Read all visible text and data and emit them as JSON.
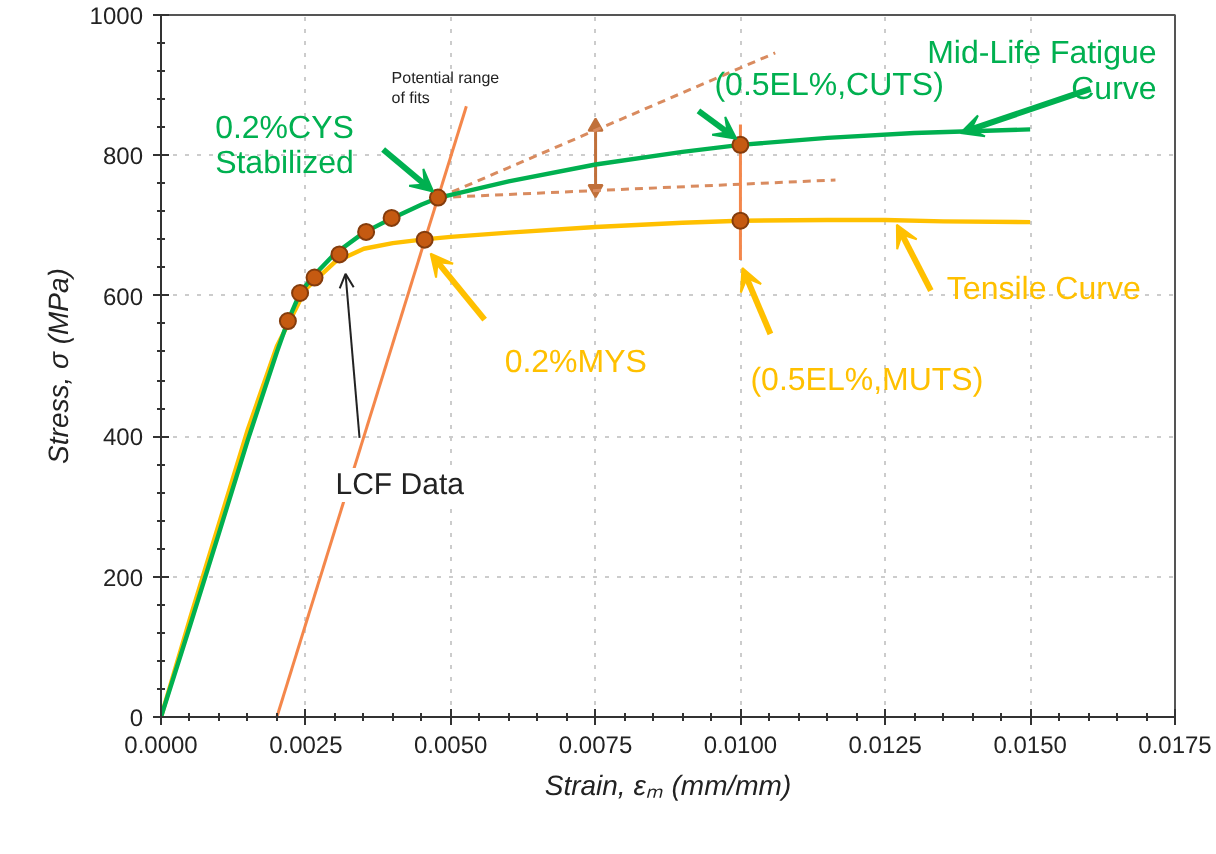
{
  "chart_data": {
    "type": "line",
    "xlabel": "Strain, εₘ (mm/mm)",
    "ylabel": "Stress, σ (MPa)",
    "xlim": [
      0,
      0.0175
    ],
    "ylim": [
      0,
      1000
    ],
    "xticks": [
      {
        "value": 0,
        "label": "0.0000"
      },
      {
        "value": 0.0025,
        "label": "0.0025"
      },
      {
        "value": 0.005,
        "label": "0.0050"
      },
      {
        "value": 0.0075,
        "label": "0.0075"
      },
      {
        "value": 0.01,
        "label": "0.0100"
      },
      {
        "value": 0.0125,
        "label": "0.0125"
      },
      {
        "value": 0.015,
        "label": "0.0150"
      },
      {
        "value": 0.0175,
        "label": "0.0175"
      }
    ],
    "yticks": [
      0,
      200,
      400,
      600,
      800,
      1000
    ],
    "grid": true,
    "series": [
      {
        "color": "#f4874b",
        "x": [
          0.002,
          0.00527
        ],
        "values": [
          0,
          870
        ]
      },
      {
        "color": "#c0703a",
        "marker": "triangle",
        "x": [
          0.0075,
          0.0075
        ],
        "values": [
          752,
          841
        ]
      },
      {
        "color": "#d98b5f",
        "line_style": "dashed",
        "x": [
          0.0048,
          0.0106
        ],
        "values": [
          740,
          946
        ]
      },
      {
        "color": "#d98b5f",
        "line_style": "dashed",
        "x": [
          0.0048,
          0.01164
        ],
        "values": [
          740,
          765
        ]
      },
      {
        "color": "#f4874b",
        "x": [
          0.01,
          0.01
        ],
        "values": [
          651,
          844
        ]
      },
      {
        "color": "#ffc000",
        "x": [
          0,
          0.0005,
          0.001,
          0.0015,
          0.002,
          0.0025,
          0.003,
          0.0035,
          0.004,
          0.0045,
          0.005,
          0.006,
          0.0075,
          0.009,
          0.01,
          0.0115,
          0.0125,
          0.0135,
          0.015
        ],
        "values": [
          0,
          140,
          275,
          410,
          528,
          610,
          648,
          667,
          675,
          680,
          684,
          690,
          698,
          704,
          707,
          708,
          708,
          706,
          705
        ]
      },
      {
        "color": "#00b050",
        "x": [
          0,
          0.0005,
          0.001,
          0.0015,
          0.002,
          0.00219,
          0.0024,
          0.00265,
          0.003,
          0.0035,
          0.004,
          0.0045,
          0.0048,
          0.006,
          0.0075,
          0.009,
          0.01,
          0.0115,
          0.013,
          0.015
        ],
        "values": [
          0,
          130,
          262,
          395,
          520,
          564,
          604,
          630,
          660,
          690,
          711,
          730,
          740,
          763,
          787,
          805,
          815,
          825,
          832,
          837
        ]
      },
      {
        "type": "scatter",
        "marker": "circle",
        "color": "#c55a11",
        "x": [
          0.00219,
          0.0024,
          0.00265,
          0.00308,
          0.00354,
          0.00398,
          0.00478
        ],
        "values": [
          564,
          604,
          626,
          659,
          691,
          711,
          740
        ]
      },
      {
        "type": "scatter",
        "marker": "circle",
        "color": "#c55a11",
        "x": [
          0.00455,
          0.01,
          0.01
        ],
        "values": [
          680,
          815,
          707
        ]
      }
    ],
    "annotations": [
      {
        "text": "0.2%CYS\nStabilized",
        "x": 0.0048,
        "y": 740
      },
      "Potential range\nof fits",
      {
        "text": "Mid-Life Fatigue\nCurve",
        "x": 0.0138,
        "y": 832
      },
      {
        "text": "(0.5EL%,CUTS)",
        "x": 0.01,
        "y": 815
      },
      {
        "text": "Tensile Curve",
        "x": 0.0127,
        "y": 707
      },
      {
        "text": "(0.5EL%,MUTS)",
        "x": 0.01,
        "y": 651
      },
      {
        "text": "0.2%MYS",
        "x": 0.00455,
        "y": 680
      },
      {
        "text": "LCF Data",
        "x": 0.00315,
        "y": 654
      }
    ]
  }
}
